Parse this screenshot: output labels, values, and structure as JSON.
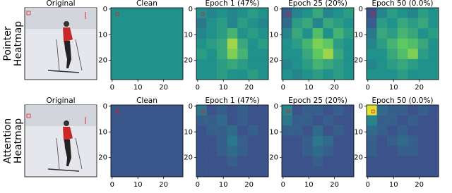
{
  "row_labels": [
    [
      "Pointer",
      "Heatmap"
    ],
    [
      "Attention",
      "Heatmap"
    ]
  ],
  "images": [
    {
      "title": "Original"
    },
    {
      "title": "Original"
    }
  ],
  "chart_data": [
    {
      "type": "heatmap",
      "title": "Clean",
      "xlim": [
        -0.5,
        27.5
      ],
      "ylim": [
        27.5,
        -0.5
      ],
      "xticks": [
        0,
        10,
        20
      ],
      "yticks": [
        0,
        10,
        20
      ],
      "colormap": "viridis",
      "vlim": [
        0,
        1
      ],
      "marker": [
        2,
        2
      ],
      "values": [
        [
          0.5
        ]
      ]
    },
    {
      "type": "heatmap",
      "title": "Epoch 1 (47%)",
      "xlim": [
        -0.5,
        27.5
      ],
      "ylim": [
        27.5,
        -0.5
      ],
      "xticks": [
        0,
        10,
        20
      ],
      "yticks": [
        0,
        10,
        20
      ],
      "colormap": "viridis",
      "vlim": [
        0,
        1
      ],
      "marker": [
        2,
        2
      ],
      "values": [
        [
          0.5,
          0.45,
          0.5,
          0.45,
          0.5,
          0.55,
          0.5
        ],
        [
          0.4,
          0.5,
          0.55,
          0.45,
          0.55,
          0.5,
          0.45
        ],
        [
          0.45,
          0.5,
          0.55,
          0.65,
          0.5,
          0.55,
          0.5
        ],
        [
          0.5,
          0.55,
          0.6,
          0.85,
          0.6,
          0.5,
          0.55
        ],
        [
          0.55,
          0.5,
          0.6,
          0.8,
          0.65,
          0.5,
          0.5
        ],
        [
          0.5,
          0.5,
          0.55,
          0.6,
          0.55,
          0.5,
          0.5
        ],
        [
          0.5,
          0.5,
          0.55,
          0.5,
          0.5,
          0.55,
          0.5
        ]
      ]
    },
    {
      "type": "heatmap",
      "title": "Epoch 25 (20%)",
      "xlim": [
        -0.5,
        27.5
      ],
      "ylim": [
        27.5,
        -0.5
      ],
      "xticks": [
        0,
        10,
        20
      ],
      "yticks": [
        0,
        10,
        20
      ],
      "colormap": "viridis",
      "vlim": [
        0,
        1
      ],
      "marker": [
        2,
        2
      ],
      "values": [
        [
          0.3,
          0.45,
          0.5,
          0.6,
          0.45,
          0.5,
          0.55
        ],
        [
          0.35,
          0.55,
          0.6,
          0.45,
          0.6,
          0.55,
          0.5
        ],
        [
          0.45,
          0.6,
          0.5,
          0.7,
          0.5,
          0.65,
          0.55
        ],
        [
          0.5,
          0.55,
          0.65,
          0.8,
          0.75,
          0.55,
          0.5
        ],
        [
          0.5,
          0.5,
          0.6,
          0.75,
          0.85,
          0.6,
          0.5
        ],
        [
          0.45,
          0.5,
          0.55,
          0.65,
          0.6,
          0.55,
          0.5
        ],
        [
          0.5,
          0.45,
          0.5,
          0.55,
          0.5,
          0.55,
          0.5
        ]
      ]
    },
    {
      "type": "heatmap",
      "title": "Epoch 50 (0.0%)",
      "xlim": [
        -0.5,
        27.5
      ],
      "ylim": [
        27.5,
        -0.5
      ],
      "xticks": [
        0,
        10,
        20
      ],
      "yticks": [
        0,
        10,
        20
      ],
      "colormap": "viridis",
      "vlim": [
        0,
        1
      ],
      "marker": [
        2,
        2
      ],
      "values": [
        [
          0.25,
          0.45,
          0.55,
          0.5,
          0.45,
          0.55,
          0.5
        ],
        [
          0.3,
          0.55,
          0.5,
          0.6,
          0.55,
          0.6,
          0.5
        ],
        [
          0.4,
          0.6,
          0.55,
          0.65,
          0.6,
          0.5,
          0.55
        ],
        [
          0.45,
          0.55,
          0.65,
          0.75,
          0.7,
          0.6,
          0.5
        ],
        [
          0.5,
          0.5,
          0.6,
          0.7,
          0.8,
          0.55,
          0.5
        ],
        [
          0.45,
          0.5,
          0.55,
          0.6,
          0.55,
          0.5,
          0.5
        ],
        [
          0.5,
          0.5,
          0.5,
          0.55,
          0.5,
          0.5,
          0.5
        ]
      ]
    },
    {
      "type": "heatmap",
      "title": "Clean",
      "xlim": [
        -0.5,
        27.5
      ],
      "ylim": [
        27.5,
        -0.5
      ],
      "xticks": [
        0,
        10,
        20
      ],
      "yticks": [
        0,
        10,
        20
      ],
      "colormap": "viridis",
      "vlim": [
        0,
        1
      ],
      "marker": [
        2,
        2
      ],
      "values": [
        [
          0.27
        ]
      ]
    },
    {
      "type": "heatmap",
      "title": "Epoch 1 (47%)",
      "xlim": [
        -0.5,
        27.5
      ],
      "ylim": [
        27.5,
        -0.5
      ],
      "xticks": [
        0,
        10,
        20
      ],
      "yticks": [
        0,
        10,
        20
      ],
      "colormap": "viridis",
      "vlim": [
        0,
        1
      ],
      "marker": [
        2,
        2
      ],
      "values": [
        [
          0.4,
          0.25,
          0.3,
          0.25,
          0.3,
          0.25,
          0.25
        ],
        [
          0.3,
          0.3,
          0.35,
          0.25,
          0.3,
          0.25,
          0.25
        ],
        [
          0.25,
          0.3,
          0.3,
          0.35,
          0.25,
          0.3,
          0.25
        ],
        [
          0.25,
          0.25,
          0.3,
          0.4,
          0.3,
          0.25,
          0.25
        ],
        [
          0.25,
          0.25,
          0.3,
          0.35,
          0.3,
          0.25,
          0.25
        ],
        [
          0.25,
          0.25,
          0.25,
          0.3,
          0.25,
          0.25,
          0.25
        ],
        [
          0.25,
          0.25,
          0.25,
          0.25,
          0.25,
          0.25,
          0.25
        ]
      ]
    },
    {
      "type": "heatmap",
      "title": "Epoch 25 (20%)",
      "xlim": [
        -0.5,
        27.5
      ],
      "ylim": [
        27.5,
        -0.5
      ],
      "xticks": [
        0,
        10,
        20
      ],
      "yticks": [
        0,
        10,
        20
      ],
      "colormap": "viridis",
      "vlim": [
        0,
        1
      ],
      "marker": [
        2,
        2
      ],
      "values": [
        [
          0.45,
          0.25,
          0.3,
          0.3,
          0.25,
          0.3,
          0.25
        ],
        [
          0.4,
          0.3,
          0.3,
          0.25,
          0.3,
          0.25,
          0.25
        ],
        [
          0.3,
          0.3,
          0.25,
          0.35,
          0.25,
          0.3,
          0.25
        ],
        [
          0.25,
          0.25,
          0.3,
          0.4,
          0.35,
          0.25,
          0.25
        ],
        [
          0.25,
          0.25,
          0.3,
          0.35,
          0.3,
          0.25,
          0.25
        ],
        [
          0.25,
          0.25,
          0.25,
          0.3,
          0.25,
          0.25,
          0.25
        ],
        [
          0.25,
          0.25,
          0.25,
          0.25,
          0.25,
          0.25,
          0.25
        ]
      ]
    },
    {
      "type": "heatmap",
      "title": "Epoch 50 (0.0%)",
      "xlim": [
        -0.5,
        27.5
      ],
      "ylim": [
        27.5,
        -0.5
      ],
      "xticks": [
        0,
        10,
        20
      ],
      "yticks": [
        0,
        10,
        20
      ],
      "colormap": "viridis",
      "vlim": [
        0,
        1
      ],
      "marker": [
        2,
        2
      ],
      "values": [
        [
          0.95,
          0.35,
          0.3,
          0.3,
          0.25,
          0.3,
          0.25
        ],
        [
          0.45,
          0.3,
          0.3,
          0.25,
          0.3,
          0.25,
          0.25
        ],
        [
          0.35,
          0.3,
          0.25,
          0.3,
          0.25,
          0.25,
          0.25
        ],
        [
          0.3,
          0.25,
          0.3,
          0.35,
          0.3,
          0.25,
          0.25
        ],
        [
          0.3,
          0.25,
          0.25,
          0.3,
          0.3,
          0.25,
          0.25
        ],
        [
          0.25,
          0.25,
          0.25,
          0.25,
          0.25,
          0.25,
          0.25
        ],
        [
          0.25,
          0.25,
          0.25,
          0.25,
          0.25,
          0.25,
          0.25
        ]
      ]
    }
  ]
}
